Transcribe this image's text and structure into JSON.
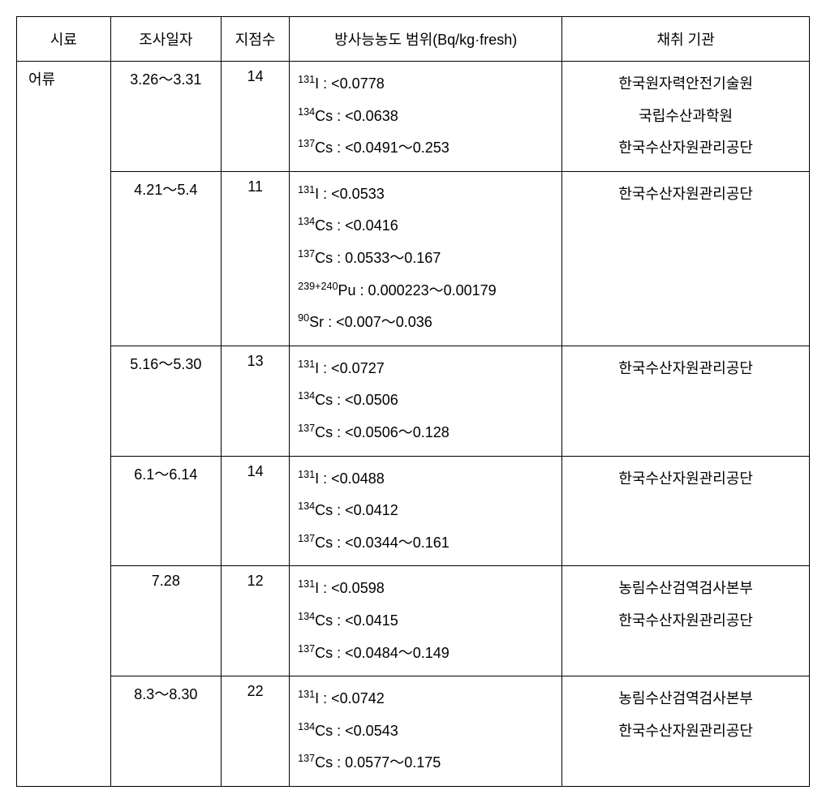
{
  "headers": {
    "sample": "시료",
    "date": "조사일자",
    "points": "지점수",
    "range": "방사능농도 범위(Bq/kg·fresh)",
    "org": "채취 기관"
  },
  "sample_label": "어류",
  "rows": [
    {
      "date": "3.26～3.31",
      "points": "14",
      "isotopes": [
        {
          "sup": "131",
          "el": "I",
          "val": "<0.0778"
        },
        {
          "sup": "134",
          "el": "Cs",
          "val": "<0.0638"
        },
        {
          "sup": "137",
          "el": "Cs",
          "val": "<0.0491～0.253"
        }
      ],
      "orgs": [
        "한국원자력안전기술원",
        "국립수산과학원",
        "한국수산자원관리공단"
      ]
    },
    {
      "date": "4.21～5.4",
      "points": "11",
      "isotopes": [
        {
          "sup": "131",
          "el": "I",
          "val": "<0.0533"
        },
        {
          "sup": "134",
          "el": "Cs",
          "val": "<0.0416"
        },
        {
          "sup": "137",
          "el": "Cs",
          "val": "0.0533～0.167"
        },
        {
          "sup": "239+240",
          "el": "Pu",
          "val": "0.000223～0.00179"
        },
        {
          "sup": "90",
          "el": "Sr",
          "val": "<0.007～0.036"
        }
      ],
      "orgs": [
        "한국수산자원관리공단"
      ]
    },
    {
      "date": "5.16～5.30",
      "points": "13",
      "isotopes": [
        {
          "sup": "131",
          "el": "I",
          "val": "<0.0727"
        },
        {
          "sup": "134",
          "el": "Cs",
          "val": "<0.0506"
        },
        {
          "sup": "137",
          "el": "Cs",
          "val": "<0.0506～0.128"
        }
      ],
      "orgs": [
        "한국수산자원관리공단"
      ]
    },
    {
      "date": "6.1～6.14",
      "points": "14",
      "isotopes": [
        {
          "sup": "131",
          "el": "I",
          "val": "<0.0488"
        },
        {
          "sup": "134",
          "el": "Cs",
          "val": "<0.0412"
        },
        {
          "sup": "137",
          "el": "Cs",
          "val": "<0.0344～0.161"
        }
      ],
      "orgs": [
        "한국수산자원관리공단"
      ]
    },
    {
      "date": "7.28",
      "points": "12",
      "isotopes": [
        {
          "sup": "131",
          "el": "I",
          "val": "<0.0598"
        },
        {
          "sup": "134",
          "el": "Cs",
          "val": "<0.0415"
        },
        {
          "sup": "137",
          "el": "Cs",
          "val": "<0.0484～0.149"
        }
      ],
      "orgs": [
        "농림수산검역검사본부",
        "한국수산자원관리공단"
      ]
    },
    {
      "date": "8.3～8.30",
      "points": "22",
      "isotopes": [
        {
          "sup": "131",
          "el": "I",
          "val": "<0.0742"
        },
        {
          "sup": "134",
          "el": "Cs",
          "val": "<0.0543"
        },
        {
          "sup": "137",
          "el": "Cs",
          "val": "0.0577～0.175"
        }
      ],
      "orgs": [
        "농림수산검역검사본부",
        "한국수산자원관리공단"
      ]
    }
  ]
}
